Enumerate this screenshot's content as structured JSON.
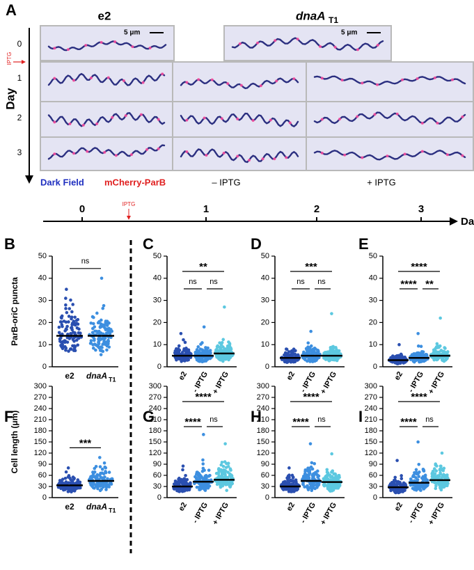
{
  "panel_a": {
    "letter": "A",
    "strain_e2": "e2",
    "strain_dnaA": "dnaA",
    "strain_dnaA_sub": "T1",
    "scale_bar": "5 μm",
    "day_axis_label": "Day",
    "day_ticks": [
      "0",
      "1",
      "2",
      "3"
    ],
    "iptg": "IPTG",
    "legend_dark": "Dark Field",
    "legend_mcherry": "mCherry-ParB",
    "col_minus": "– IPTG",
    "col_plus": "+ IPTG"
  },
  "timeline": {
    "ticks": [
      "0",
      "1",
      "2",
      "3"
    ],
    "label": "Day",
    "iptg": "IPTG"
  },
  "chart_data": [
    {
      "type": "dot",
      "letter": "B",
      "ylabel": "ParB-oriC puncta",
      "ylim": [
        0,
        50
      ],
      "yticks": [
        0,
        10,
        20,
        30,
        40,
        50
      ],
      "categories": [
        {
          "text": "e2"
        },
        {
          "text": "dnaA",
          "sub": "T1"
        }
      ],
      "values": [
        14,
        14
      ],
      "max": [
        35,
        40
      ],
      "colors": [
        "#2a4fb0",
        "#3d8fe0"
      ],
      "brackets": [
        {
          "label": "ns",
          "from": 0,
          "to": 1
        }
      ]
    },
    {
      "type": "dot",
      "letter": "C",
      "ylim": [
        0,
        50
      ],
      "yticks": [
        0,
        10,
        20,
        30,
        40,
        50
      ],
      "categories": [
        {
          "text": "e2"
        },
        {
          "text": "- IPTG"
        },
        {
          "text": "+ IPTG"
        }
      ],
      "values": [
        5,
        5,
        6
      ],
      "max": [
        15,
        18,
        27
      ],
      "colors": [
        "#2a4fb0",
        "#3d8fe0",
        "#5cc8e0"
      ],
      "brackets": [
        {
          "label": "**",
          "from": 0,
          "to": 2
        },
        {
          "label": "ns",
          "from": 0,
          "to": 1
        },
        {
          "label": "ns",
          "from": 1,
          "to": 2
        }
      ]
    },
    {
      "type": "dot",
      "letter": "D",
      "ylim": [
        0,
        50
      ],
      "yticks": [
        0,
        10,
        20,
        30,
        40,
        50
      ],
      "categories": [
        {
          "text": "e2"
        },
        {
          "text": "- IPTG"
        },
        {
          "text": "+ IPTG"
        }
      ],
      "values": [
        4,
        5,
        5
      ],
      "max": [
        8,
        16,
        24
      ],
      "colors": [
        "#2a4fb0",
        "#3d8fe0",
        "#5cc8e0"
      ],
      "brackets": [
        {
          "label": "***",
          "from": 0,
          "to": 2
        },
        {
          "label": "ns",
          "from": 0,
          "to": 1
        },
        {
          "label": "ns",
          "from": 1,
          "to": 2
        }
      ]
    },
    {
      "type": "dot",
      "letter": "E",
      "ylim": [
        0,
        50
      ],
      "yticks": [
        0,
        10,
        20,
        30,
        40,
        50
      ],
      "categories": [
        {
          "text": "e2"
        },
        {
          "text": "- IPTG"
        },
        {
          "text": "+ IPTG"
        }
      ],
      "values": [
        3,
        4,
        5
      ],
      "max": [
        10,
        15,
        22
      ],
      "colors": [
        "#2a4fb0",
        "#3d8fe0",
        "#5cc8e0"
      ],
      "brackets": [
        {
          "label": "****",
          "from": 0,
          "to": 2
        },
        {
          "label": "****",
          "from": 0,
          "to": 1
        },
        {
          "label": "**",
          "from": 1,
          "to": 2
        }
      ]
    },
    {
      "type": "dot",
      "letter": "F",
      "ylabel": "Cell length (μm)",
      "ylim": [
        0,
        300
      ],
      "yticks": [
        0,
        30,
        60,
        90,
        120,
        150,
        180,
        210,
        240,
        270,
        300
      ],
      "categories": [
        {
          "text": "e2"
        },
        {
          "text": "dnaA",
          "sub": "T1"
        }
      ],
      "values": [
        33,
        45
      ],
      "max": [
        80,
        108
      ],
      "colors": [
        "#2a4fb0",
        "#3d8fe0"
      ],
      "brackets": [
        {
          "label": "***",
          "from": 0,
          "to": 1
        }
      ]
    },
    {
      "type": "dot",
      "letter": "G",
      "ylim": [
        0,
        300
      ],
      "yticks": [
        0,
        30,
        60,
        90,
        120,
        150,
        180,
        210,
        240,
        270,
        300
      ],
      "categories": [
        {
          "text": "e2"
        },
        {
          "text": "- IPTG"
        },
        {
          "text": "+ IPTG"
        }
      ],
      "values": [
        30,
        43,
        48
      ],
      "max": [
        85,
        170,
        145
      ],
      "colors": [
        "#2a4fb0",
        "#3d8fe0",
        "#5cc8e0"
      ],
      "brackets": [
        {
          "label": "****",
          "from": 0,
          "to": 2
        },
        {
          "label": "****",
          "from": 0,
          "to": 1
        },
        {
          "label": "ns",
          "from": 1,
          "to": 2
        }
      ]
    },
    {
      "type": "dot",
      "letter": "H",
      "ylim": [
        0,
        300
      ],
      "yticks": [
        0,
        30,
        60,
        90,
        120,
        150,
        180,
        210,
        240,
        270,
        300
      ],
      "categories": [
        {
          "text": "e2"
        },
        {
          "text": "- IPTG"
        },
        {
          "text": "+ IPTG"
        }
      ],
      "values": [
        30,
        45,
        42
      ],
      "max": [
        80,
        145,
        118
      ],
      "colors": [
        "#2a4fb0",
        "#3d8fe0",
        "#5cc8e0"
      ],
      "brackets": [
        {
          "label": "****",
          "from": 0,
          "to": 2
        },
        {
          "label": "****",
          "from": 0,
          "to": 1
        },
        {
          "label": "ns",
          "from": 1,
          "to": 2
        }
      ]
    },
    {
      "type": "dot",
      "letter": "I",
      "ylim": [
        0,
        300
      ],
      "yticks": [
        0,
        30,
        60,
        90,
        120,
        150,
        180,
        210,
        240,
        270,
        300
      ],
      "categories": [
        {
          "text": "e2"
        },
        {
          "text": "- IPTG"
        },
        {
          "text": "+ IPTG"
        }
      ],
      "values": [
        28,
        40,
        47
      ],
      "max": [
        100,
        150,
        120
      ],
      "colors": [
        "#2a4fb0",
        "#3d8fe0",
        "#5cc8e0"
      ],
      "brackets": [
        {
          "label": "****",
          "from": 0,
          "to": 2
        },
        {
          "label": "****",
          "from": 0,
          "to": 1
        },
        {
          "label": "ns",
          "from": 1,
          "to": 2
        }
      ]
    }
  ]
}
